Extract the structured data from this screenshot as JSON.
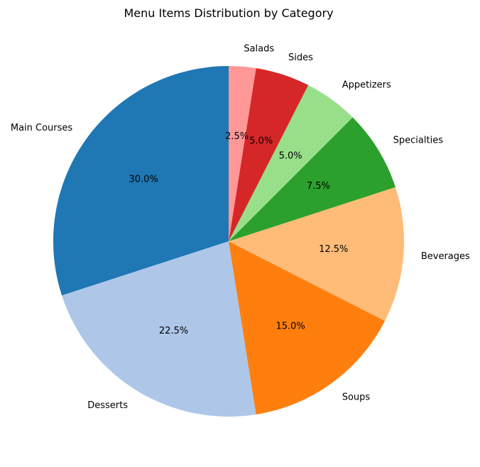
{
  "chart_data": {
    "type": "pie",
    "title": "Menu Items Distribution by Category",
    "start_angle_deg": 90,
    "direction": "counterclockwise",
    "categories": [
      "Main Courses",
      "Desserts",
      "Soups",
      "Beverages",
      "Specialties",
      "Appetizers",
      "Sides",
      "Salads"
    ],
    "values": [
      30.0,
      22.5,
      15.0,
      12.5,
      7.5,
      5.0,
      5.0,
      2.5
    ],
    "percent_labels": [
      "30.0%",
      "22.5%",
      "15.0%",
      "12.5%",
      "7.5%",
      "5.0%",
      "5.0%",
      "2.5%"
    ],
    "colors": [
      "#1f77b4",
      "#aec7e8",
      "#ff7f0e",
      "#ffbb78",
      "#2ca02c",
      "#98df8a",
      "#d62728",
      "#ff9896"
    ]
  }
}
